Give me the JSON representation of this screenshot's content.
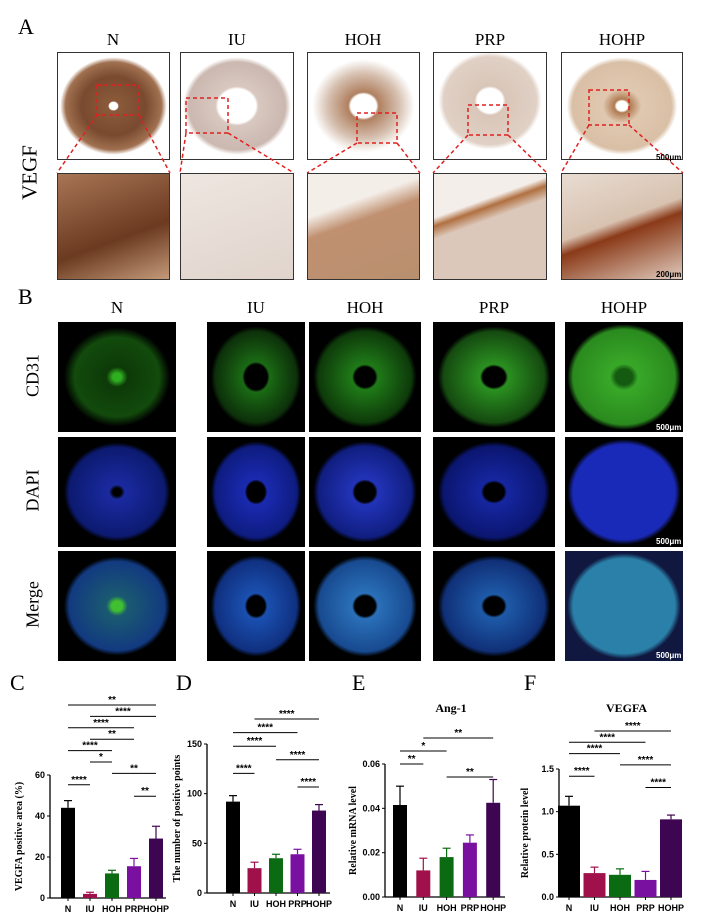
{
  "panels": {
    "a": "A",
    "b": "B",
    "c": "C",
    "d": "D",
    "e": "E",
    "f": "F"
  },
  "groups": [
    "N",
    "IU",
    "HOH",
    "PRP",
    "HOHP"
  ],
  "panel_a": {
    "row_label": "VEGF",
    "scale_top": "500μm",
    "scale_bottom": "200μm"
  },
  "panel_b": {
    "row_labels": [
      "CD31",
      "DAPI",
      "Merge"
    ],
    "scale": "500μm"
  },
  "colors": {
    "N": "#000000",
    "IU": "#a0104a",
    "HOH": "#0b6b12",
    "PRP": "#7a10a0",
    "HOHP": "#3e0552",
    "zoom_box": "#e02020"
  },
  "chart_data": [
    {
      "type": "bar",
      "panel": "C",
      "title": "",
      "ylabel": "VEGFA positive area (%)",
      "categories": [
        "N",
        "IU",
        "HOH",
        "PRP",
        "HOHP"
      ],
      "values": [
        44,
        2,
        12,
        15.5,
        29
      ],
      "errors": [
        3.5,
        0.8,
        1.5,
        3.8,
        6
      ],
      "ylim": [
        0,
        60
      ],
      "yticks": [
        "0",
        "20",
        "40",
        "60"
      ],
      "ytick_values": [
        0,
        20,
        40,
        60
      ],
      "grid": false,
      "significance": [
        {
          "pair": [
            "N",
            "HOHP"
          ],
          "label": "**"
        },
        {
          "pair": [
            "IU",
            "HOHP"
          ],
          "label": "****"
        },
        {
          "pair": [
            "N",
            "PRP"
          ],
          "label": "****"
        },
        {
          "pair": [
            "IU",
            "PRP"
          ],
          "label": "**"
        },
        {
          "pair": [
            "N",
            "HOH"
          ],
          "label": "****"
        },
        {
          "pair": [
            "IU",
            "HOH"
          ],
          "label": "*"
        },
        {
          "pair": [
            "HOH",
            "HOHP"
          ],
          "label": "**"
        },
        {
          "pair": [
            "N",
            "IU"
          ],
          "label": "****"
        },
        {
          "pair": [
            "PRP",
            "HOHP"
          ],
          "label": "**"
        }
      ]
    },
    {
      "type": "bar",
      "panel": "D",
      "title": "",
      "ylabel": "The number of positive points",
      "categories": [
        "N",
        "IU",
        "HOH",
        "PRP",
        "HOHP"
      ],
      "values": [
        92,
        25,
        35,
        39,
        83
      ],
      "errors": [
        6,
        6,
        4,
        5,
        6
      ],
      "ylim": [
        0,
        150
      ],
      "yticks": [
        "0",
        "50",
        "100",
        "150"
      ],
      "ytick_values": [
        0,
        50,
        100,
        150
      ],
      "grid": false,
      "significance": [
        {
          "pair": [
            "IU",
            "HOHP"
          ],
          "label": "****"
        },
        {
          "pair": [
            "N",
            "PRP"
          ],
          "label": "****"
        },
        {
          "pair": [
            "N",
            "HOH"
          ],
          "label": "****"
        },
        {
          "pair": [
            "HOH",
            "HOHP"
          ],
          "label": "****"
        },
        {
          "pair": [
            "N",
            "IU"
          ],
          "label": "****"
        },
        {
          "pair": [
            "PRP",
            "HOHP"
          ],
          "label": "****"
        }
      ]
    },
    {
      "type": "bar",
      "panel": "E",
      "title": "Ang-1",
      "ylabel": "Relative mRNA level",
      "categories": [
        "N",
        "IU",
        "HOH",
        "PRP",
        "HOHP"
      ],
      "values": [
        0.0415,
        0.012,
        0.018,
        0.0245,
        0.0425
      ],
      "errors": [
        0.0085,
        0.0055,
        0.004,
        0.0035,
        0.0105
      ],
      "ylim": [
        0,
        0.06
      ],
      "yticks": [
        "0.00",
        "0.02",
        "0.04",
        "0.06"
      ],
      "ytick_values": [
        0,
        0.02,
        0.04,
        0.06
      ],
      "grid": false,
      "significance": [
        {
          "pair": [
            "IU",
            "HOHP"
          ],
          "label": "**"
        },
        {
          "pair": [
            "N",
            "HOH"
          ],
          "label": "*"
        },
        {
          "pair": [
            "N",
            "IU"
          ],
          "label": "**"
        },
        {
          "pair": [
            "HOH",
            "HOHP"
          ],
          "label": "**"
        }
      ]
    },
    {
      "type": "bar",
      "panel": "F",
      "title": "VEGFA",
      "ylabel": "Relative protein level",
      "categories": [
        "N",
        "IU",
        "HOH",
        "PRP",
        "HOHP"
      ],
      "values": [
        1.07,
        0.28,
        0.26,
        0.2,
        0.91
      ],
      "errors": [
        0.11,
        0.07,
        0.07,
        0.1,
        0.05
      ],
      "ylim": [
        0,
        1.5
      ],
      "yticks": [
        "0.0",
        "0.5",
        "1.0",
        "1.5"
      ],
      "ytick_values": [
        0,
        0.5,
        1.0,
        1.5
      ],
      "grid": false,
      "significance": [
        {
          "pair": [
            "IU",
            "HOHP"
          ],
          "label": "****"
        },
        {
          "pair": [
            "N",
            "PRP"
          ],
          "label": "****"
        },
        {
          "pair": [
            "N",
            "HOH"
          ],
          "label": "****"
        },
        {
          "pair": [
            "HOH",
            "HOHP"
          ],
          "label": "****"
        },
        {
          "pair": [
            "N",
            "IU"
          ],
          "label": "****"
        },
        {
          "pair": [
            "PRP",
            "HOHP"
          ],
          "label": "****"
        }
      ]
    }
  ]
}
